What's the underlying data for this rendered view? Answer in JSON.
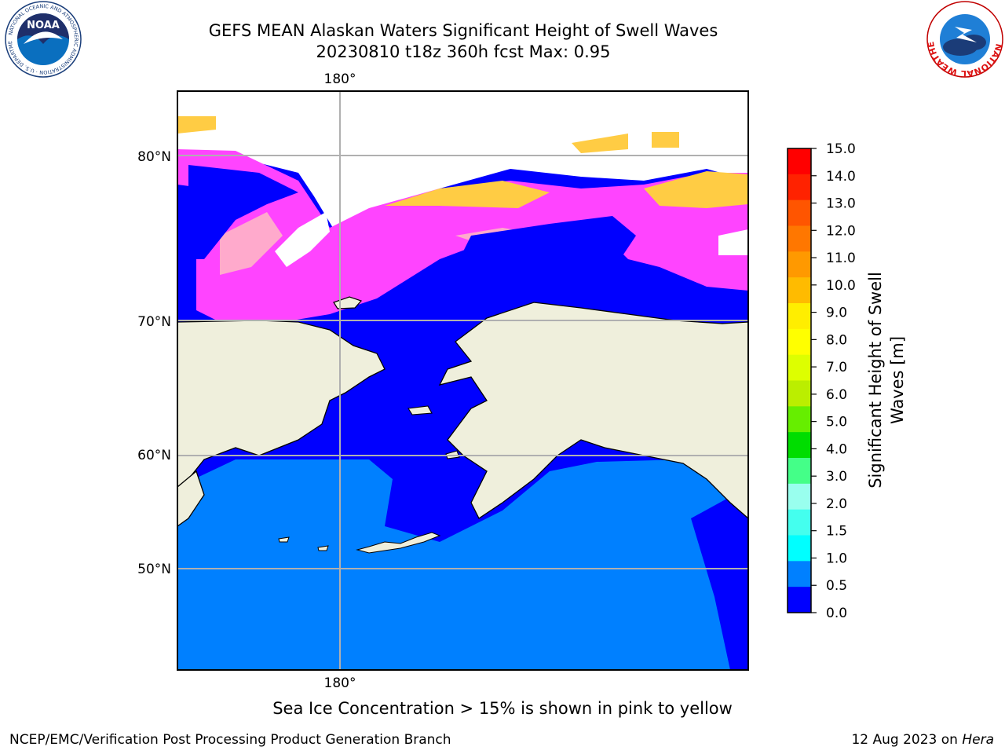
{
  "title": {
    "line1": "GEFS MEAN Alaskan Waters Significant Height of Swell Waves",
    "line2": "20230810 t18z 360h fcst   Max: 0.95"
  },
  "map": {
    "top_lon_label": "180°",
    "bottom_lon_label": "180°",
    "lat_labels": [
      "80°N",
      "70°N",
      "60°N",
      "50°N"
    ],
    "colors": {
      "land": "#efefdc",
      "deep_blue": "#0000ff",
      "mid_blue": "#0080ff",
      "ice_pink": "#ff44ff",
      "ice_yellow": "#ffcc44",
      "grid": "#b0b0b0"
    }
  },
  "colorbar": {
    "label": "Significant Height of Swell Waves [m]",
    "label_line1": "Significant Height of Swell",
    "label_line2": "Waves [m]",
    "ticks": [
      "15.0",
      "14.0",
      "13.0",
      "12.0",
      "11.0",
      "10.0",
      "9.0",
      "8.0",
      "7.0",
      "6.0",
      "5.0",
      "4.0",
      "3.0",
      "2.0",
      "1.5",
      "1.0",
      "0.5",
      "0.0"
    ],
    "colors": [
      "#ff0000",
      "#ff2200",
      "#ff5500",
      "#ff7700",
      "#ff9900",
      "#ffbb00",
      "#ffee00",
      "#ffff00",
      "#ddff00",
      "#bbee00",
      "#66ee00",
      "#00dd00",
      "#44ff88",
      "#99ffee",
      "#44ffee",
      "#00ffff",
      "#0080ff",
      "#0000ff"
    ]
  },
  "ice_note": "Sea Ice Concentration > 15% is shown in pink to yellow",
  "footer": {
    "left": "NCEP/EMC/Verification Post Processing Product Generation Branch",
    "right_date": "12 Aug 2023 on ",
    "right_host": "Hera"
  },
  "logos": {
    "noaa_text": "NOAA",
    "noaa_ring": "NATIONAL OCEANIC AND ATMOSPHERIC ADMINISTRATION · U.S. DEPARTMENT OF COMMERCE",
    "nws_ring": "NATIONAL WEATHER SERVICE"
  }
}
